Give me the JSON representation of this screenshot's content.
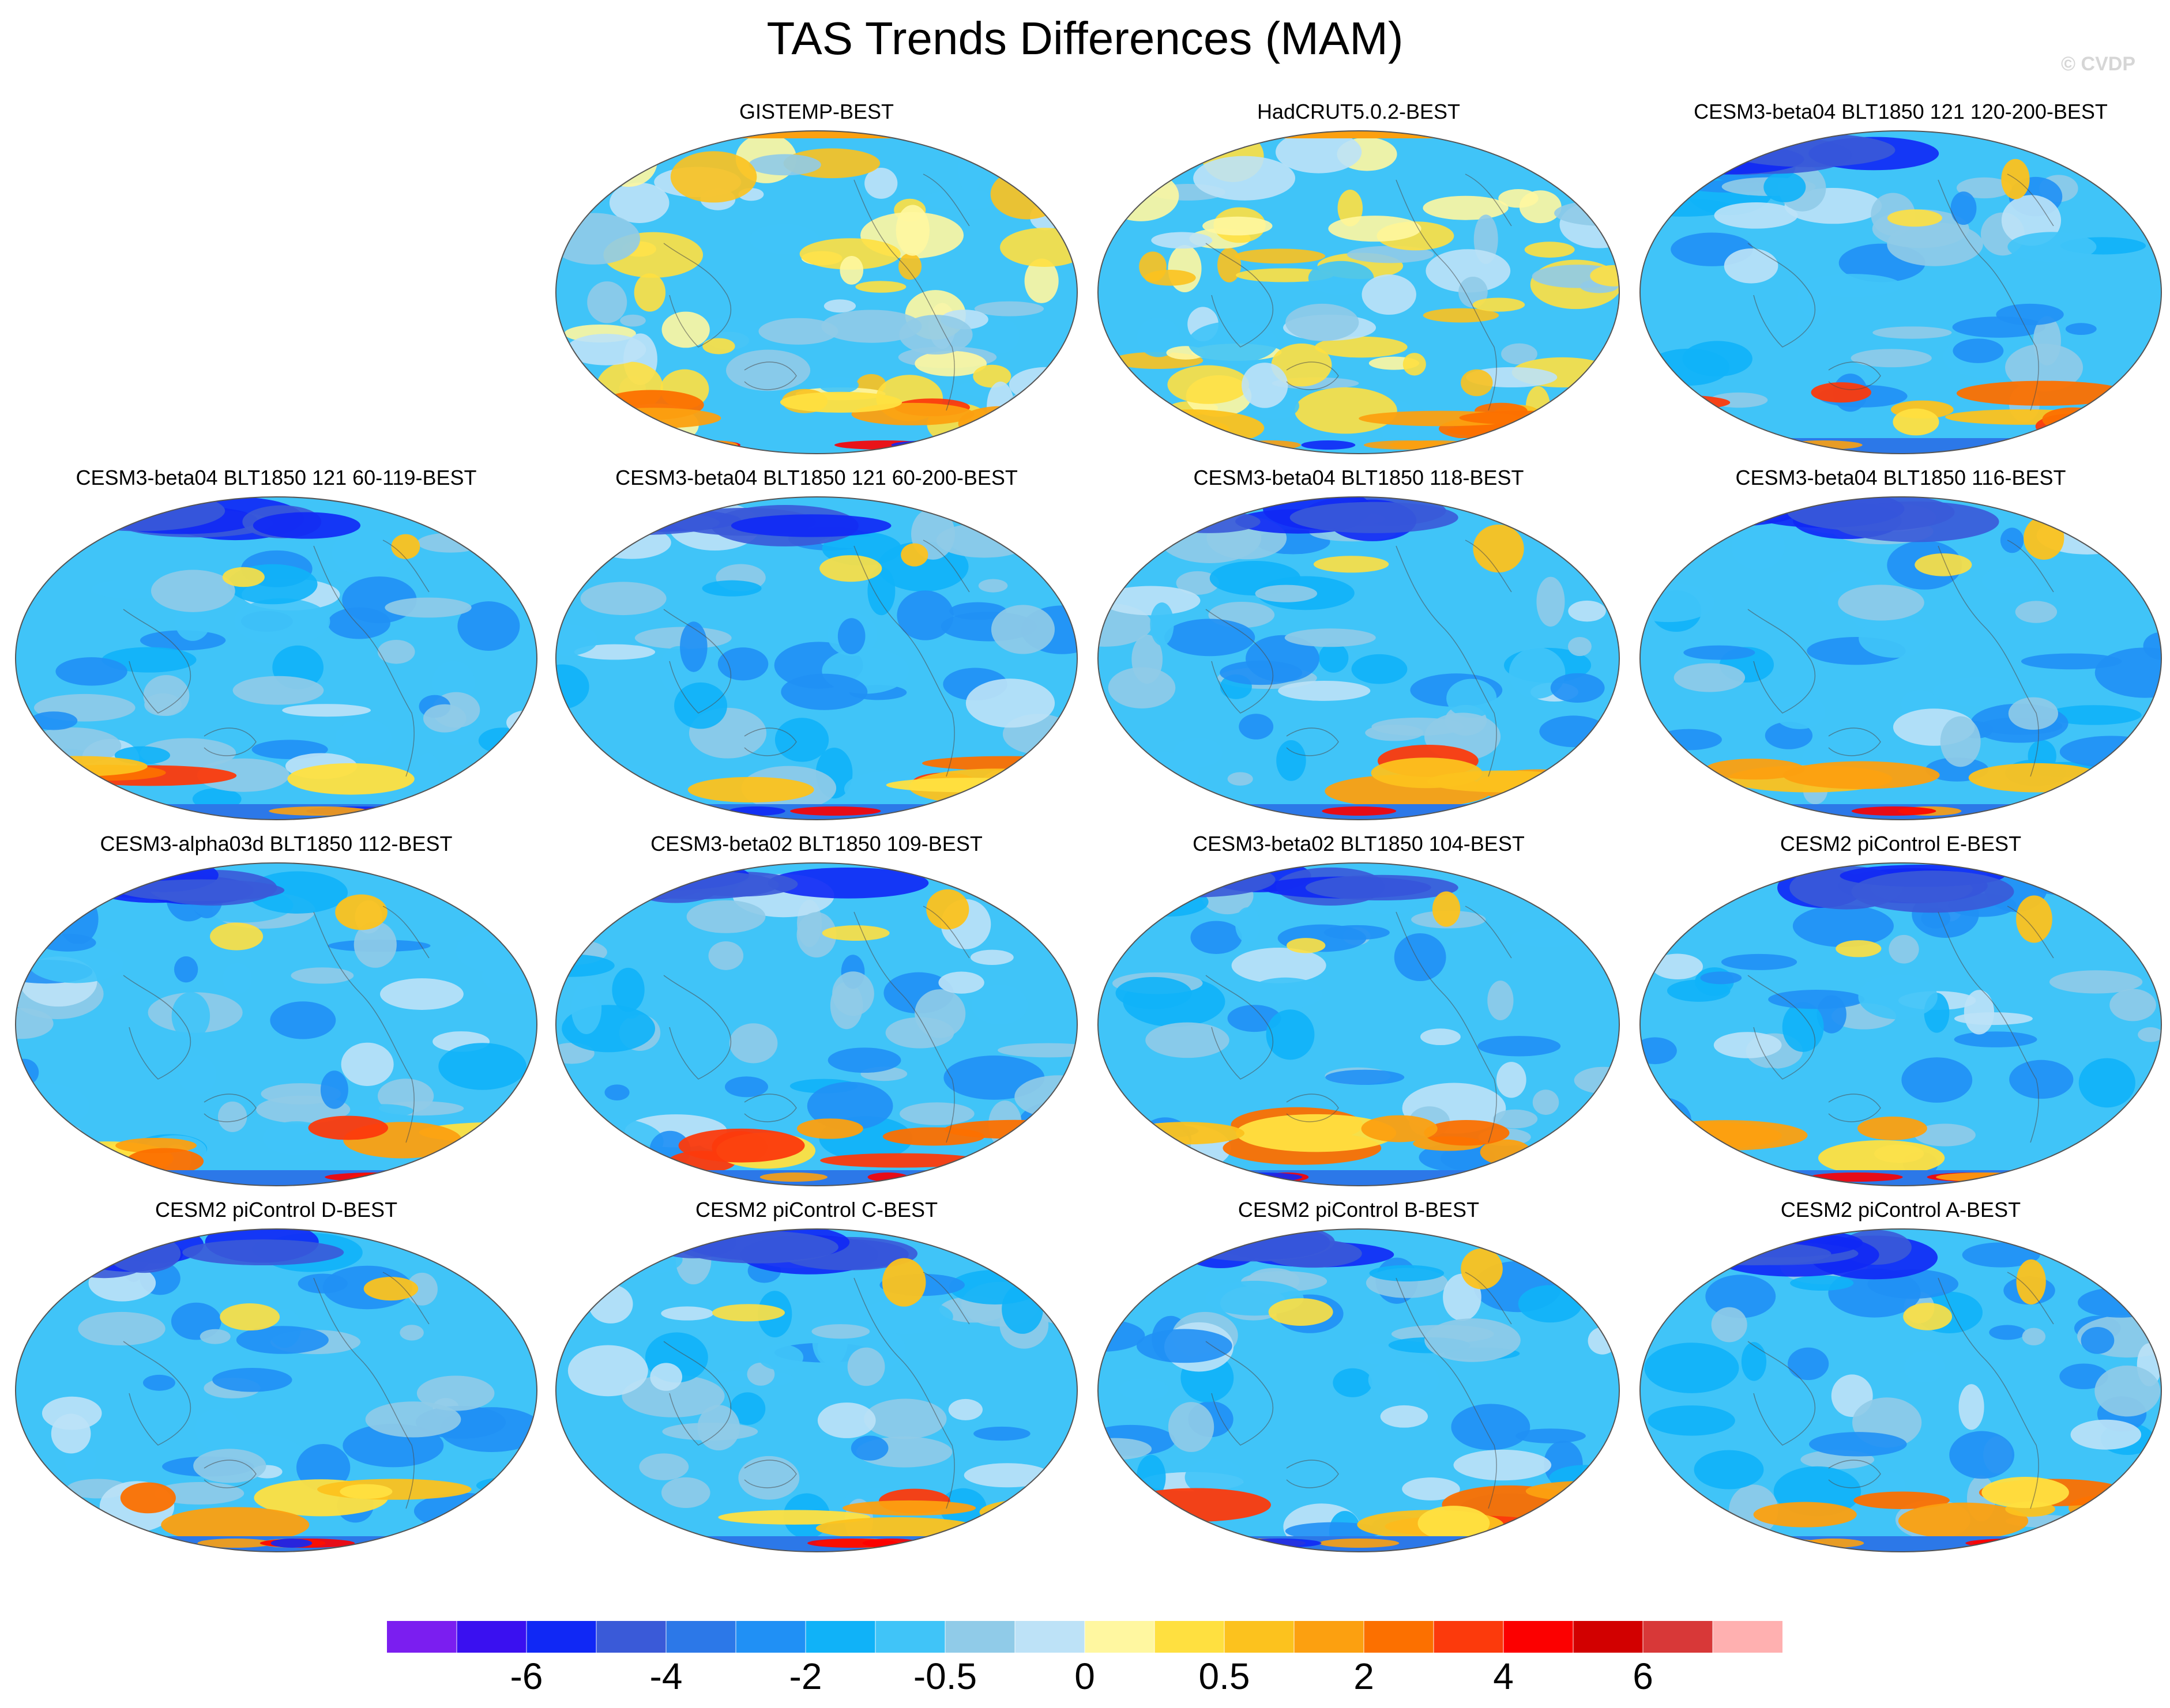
{
  "title": "TAS Trends Differences (MAM)",
  "watermark": "© CVDP",
  "colors": {
    "bins": [
      "#7b1ef0",
      "#3a10f0",
      "#1028f5",
      "#3a5ad8",
      "#2c78e8",
      "#2090f5",
      "#10b2f8",
      "#40c4f8",
      "#90cbe8",
      "#bde2f7",
      "#fff7a0",
      "#ffe040",
      "#fcc21e",
      "#fca010",
      "#fc7000",
      "#fc3a0c",
      "#fc0000",
      "#d20000",
      "#d83838",
      "#ffb0b0"
    ]
  },
  "chart_data": {
    "type": "map-panels",
    "variable": "TAS",
    "season": "MAM",
    "projection": "Robinson",
    "panels": [
      {
        "title": "GISTEMP-BEST",
        "row": 0,
        "col": 1
      },
      {
        "title": "HadCRUT5.0.2-BEST",
        "row": 0,
        "col": 2
      },
      {
        "title": "CESM3-beta04 BLT1850 121 120-200-BEST",
        "row": 0,
        "col": 3
      },
      {
        "title": "CESM3-beta04 BLT1850 121 60-119-BEST",
        "row": 1,
        "col": 0
      },
      {
        "title": "CESM3-beta04 BLT1850 121 60-200-BEST",
        "row": 1,
        "col": 1
      },
      {
        "title": "CESM3-beta04 BLT1850 118-BEST",
        "row": 1,
        "col": 2
      },
      {
        "title": "CESM3-beta04 BLT1850 116-BEST",
        "row": 1,
        "col": 3
      },
      {
        "title": "CESM3-alpha03d BLT1850 112-BEST",
        "row": 2,
        "col": 0
      },
      {
        "title": "CESM3-beta02 BLT1850 109-BEST",
        "row": 2,
        "col": 1
      },
      {
        "title": "CESM3-beta02 BLT1850 104-BEST",
        "row": 2,
        "col": 2
      },
      {
        "title": "CESM2 piControl E-BEST",
        "row": 2,
        "col": 3
      },
      {
        "title": "CESM2 piControl D-BEST",
        "row": 3,
        "col": 0
      },
      {
        "title": "CESM2 piControl C-BEST",
        "row": 3,
        "col": 1
      },
      {
        "title": "CESM2 piControl B-BEST",
        "row": 3,
        "col": 2
      },
      {
        "title": "CESM2 piControl A-BEST",
        "row": 3,
        "col": 3
      }
    ],
    "colorbar": {
      "levels": 20,
      "labels": [
        {
          "text": "-6",
          "after_bin": 2
        },
        {
          "text": "-4",
          "after_bin": 4
        },
        {
          "text": "-2",
          "after_bin": 6
        },
        {
          "text": "-0.5",
          "after_bin": 8
        },
        {
          "text": "0",
          "after_bin": 10
        },
        {
          "text": "0.5",
          "after_bin": 12
        },
        {
          "text": "2",
          "after_bin": 14
        },
        {
          "text": "4",
          "after_bin": 16
        },
        {
          "text": "6",
          "after_bin": 18
        }
      ]
    }
  }
}
